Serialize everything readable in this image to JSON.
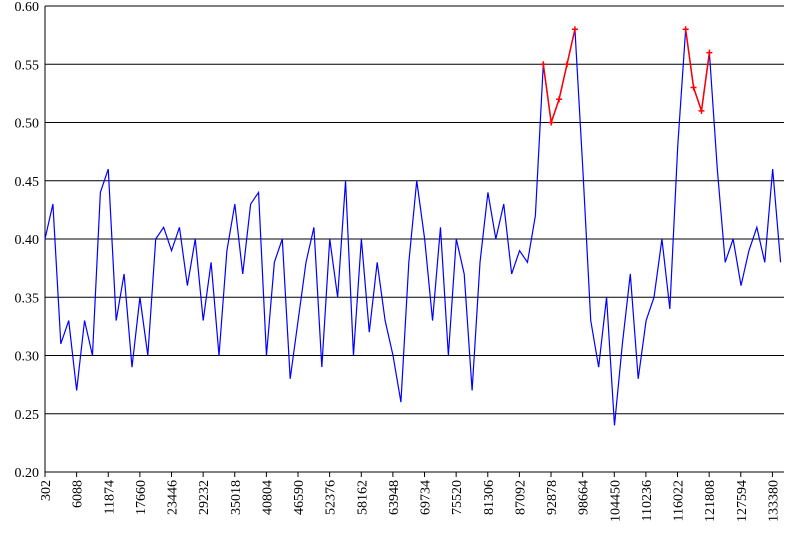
{
  "chart_data": {
    "type": "line",
    "x": [
      302,
      1749,
      3196,
      4643,
      6090,
      7537,
      8984,
      10431,
      11878,
      13325,
      14772,
      16219,
      17666,
      19113,
      20560,
      22007,
      23454,
      24901,
      26348,
      27795,
      29242,
      30689,
      32136,
      33583,
      35030,
      36477,
      37924,
      39371,
      40818,
      42265,
      43712,
      45159,
      46606,
      48053,
      49500,
      50947,
      52394,
      53841,
      55288,
      56735,
      58182,
      59629,
      61076,
      62523,
      63970,
      65417,
      66864,
      68311,
      69758,
      71205,
      72652,
      74099,
      75546,
      76993,
      78440,
      79887,
      81334,
      82781,
      84228,
      85675,
      87122,
      88569,
      90016,
      91463,
      92910,
      94357,
      95804,
      97251,
      98698,
      100145,
      101592,
      103039,
      104486,
      105933,
      107380,
      108827,
      110274,
      111721,
      113168,
      114615,
      116062,
      117509,
      118956,
      120403,
      121850,
      123297,
      124744,
      126191,
      127638,
      129085,
      130532,
      131979,
      133426,
      134873
    ],
    "values": [
      0.4,
      0.43,
      0.31,
      0.33,
      0.27,
      0.33,
      0.3,
      0.44,
      0.46,
      0.33,
      0.37,
      0.29,
      0.35,
      0.3,
      0.4,
      0.41,
      0.39,
      0.41,
      0.36,
      0.4,
      0.33,
      0.38,
      0.3,
      0.39,
      0.43,
      0.37,
      0.43,
      0.44,
      0.3,
      0.38,
      0.4,
      0.28,
      0.33,
      0.38,
      0.41,
      0.29,
      0.4,
      0.35,
      0.45,
      0.3,
      0.4,
      0.32,
      0.38,
      0.33,
      0.3,
      0.26,
      0.38,
      0.45,
      0.4,
      0.33,
      0.41,
      0.3,
      0.4,
      0.37,
      0.27,
      0.38,
      0.44,
      0.4,
      0.43,
      0.37,
      0.39,
      0.38,
      0.42,
      0.55,
      0.5,
      0.52,
      0.55,
      0.58,
      0.46,
      0.33,
      0.29,
      0.35,
      0.24,
      0.31,
      0.37,
      0.28,
      0.33,
      0.35,
      0.4,
      0.34,
      0.48,
      0.58,
      0.53,
      0.51,
      0.56,
      0.46,
      0.38,
      0.4,
      0.36,
      0.39,
      0.41,
      0.38,
      0.46,
      0.38
    ],
    "color": "#0000ff",
    "highlight": {
      "color": "#ff0000",
      "above": 0.5
    },
    "xlim": [
      302,
      135500
    ],
    "xticks": [
      302,
      6088,
      11874,
      17660,
      23446,
      29232,
      35018,
      40804,
      46590,
      52376,
      58162,
      63948,
      69734,
      75520,
      81306,
      87092,
      92878,
      98664,
      104450,
      110236,
      116022,
      121808,
      127594,
      133380
    ],
    "ylim": [
      0.2,
      0.6
    ],
    "yticks": [
      {
        "value": 0.2,
        "label": "0.20"
      },
      {
        "value": 0.25,
        "label": "0.25"
      },
      {
        "value": 0.3,
        "label": "0.30"
      },
      {
        "value": 0.35,
        "label": "0.35"
      },
      {
        "value": 0.4,
        "label": "0.40"
      },
      {
        "value": 0.45,
        "label": "0.45"
      },
      {
        "value": 0.5,
        "label": "0.50"
      },
      {
        "value": 0.55,
        "label": "0.55"
      },
      {
        "value": 0.6,
        "label": "0.60"
      }
    ],
    "grid": true
  }
}
